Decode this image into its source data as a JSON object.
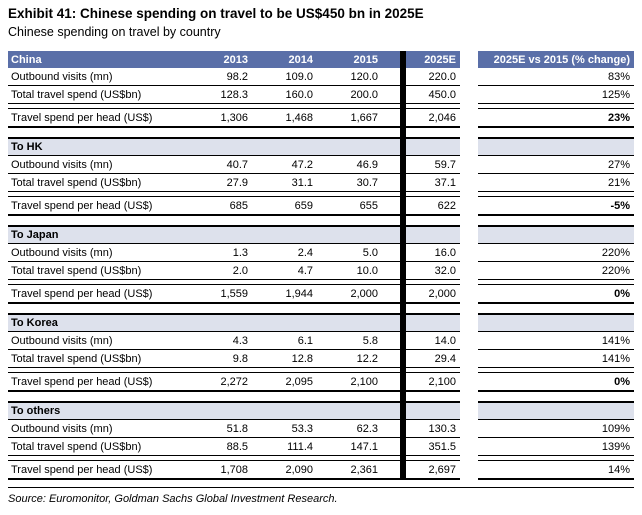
{
  "title": "Exhibit 41: Chinese spending on travel to be US$450 bn in 2025E",
  "subtitle": "Chinese spending on travel by country",
  "source": "Source: Euromonitor, Goldman Sachs Global Investment Research.",
  "colors": {
    "header_blue": "#5a6fa8",
    "section_band": "#dde1ec",
    "divider": "#000000"
  },
  "header": {
    "years": [
      "2013",
      "2014",
      "2015"
    ],
    "forecast": "2025E",
    "change_label": "2025E vs 2015 (% change)"
  },
  "sections": [
    {
      "name": "China",
      "rows": [
        {
          "label": "Outbound visits (mn)",
          "values": [
            "98.2",
            "109.0",
            "120.0",
            "220.0"
          ],
          "change": "83%",
          "change_bold": false
        },
        {
          "label": "Total travel spend (US$bn)",
          "values": [
            "128.3",
            "160.0",
            "200.0",
            "450.0"
          ],
          "change": "125%",
          "change_bold": false
        },
        {
          "label": "Travel spend per head (US$)",
          "values": [
            "1,306",
            "1,468",
            "1,667",
            "2,046"
          ],
          "change": "23%",
          "change_bold": true
        }
      ]
    },
    {
      "name": "To HK",
      "rows": [
        {
          "label": "Outbound visits (mn)",
          "values": [
            "40.7",
            "47.2",
            "46.9",
            "59.7"
          ],
          "change": "27%",
          "change_bold": false
        },
        {
          "label": "Total travel spend (US$bn)",
          "values": [
            "27.9",
            "31.1",
            "30.7",
            "37.1"
          ],
          "change": "21%",
          "change_bold": false
        },
        {
          "label": "Travel spend per head (US$)",
          "values": [
            "685",
            "659",
            "655",
            "622"
          ],
          "change": "-5%",
          "change_bold": true
        }
      ]
    },
    {
      "name": "To Japan",
      "rows": [
        {
          "label": "Outbound visits (mn)",
          "values": [
            "1.3",
            "2.4",
            "5.0",
            "16.0"
          ],
          "change": "220%",
          "change_bold": false
        },
        {
          "label": "Total travel spend (US$bn)",
          "values": [
            "2.0",
            "4.7",
            "10.0",
            "32.0"
          ],
          "change": "220%",
          "change_bold": false
        },
        {
          "label": "Travel spend per head (US$)",
          "values": [
            "1,559",
            "1,944",
            "2,000",
            "2,000"
          ],
          "change": "0%",
          "change_bold": true
        }
      ]
    },
    {
      "name": "To Korea",
      "rows": [
        {
          "label": "Outbound visits (mn)",
          "values": [
            "4.3",
            "6.1",
            "5.8",
            "14.0"
          ],
          "change": "141%",
          "change_bold": false
        },
        {
          "label": "Total travel spend (US$bn)",
          "values": [
            "9.8",
            "12.8",
            "12.2",
            "29.4"
          ],
          "change": "141%",
          "change_bold": false
        },
        {
          "label": "Travel spend per head (US$)",
          "values": [
            "2,272",
            "2,095",
            "2,100",
            "2,100"
          ],
          "change": "0%",
          "change_bold": true
        }
      ]
    },
    {
      "name": "To others",
      "rows": [
        {
          "label": "Outbound visits (mn)",
          "values": [
            "51.8",
            "53.3",
            "62.3",
            "130.3"
          ],
          "change": "109%",
          "change_bold": false
        },
        {
          "label": "Total travel spend (US$bn)",
          "values": [
            "88.5",
            "111.4",
            "147.1",
            "351.5"
          ],
          "change": "139%",
          "change_bold": false
        },
        {
          "label": "Travel spend per head (US$)",
          "values": [
            "1,708",
            "2,090",
            "2,361",
            "2,697"
          ],
          "change": "14%",
          "change_bold": false
        }
      ]
    }
  ]
}
